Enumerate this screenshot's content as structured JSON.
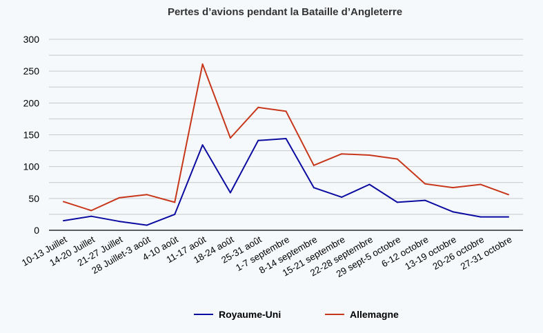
{
  "chart_data": {
    "type": "line",
    "title": "Pertes d’avions pendant la Bataille d’Angleterre",
    "xlabel": "",
    "ylabel": "",
    "ylim": [
      0,
      300
    ],
    "yticks": [
      0,
      50,
      100,
      150,
      200,
      250,
      300
    ],
    "grid": true,
    "legend_position": "bottom",
    "categories": [
      "10-13 Juillet",
      "14-20 Juillet",
      "21-27 Juillet",
      "28 Juillet-3 août",
      "4-10 août",
      "11-17 août",
      "18-24 août",
      "25-31 août",
      "1-7 septembre",
      "8-14 septembre",
      "15-21 septembre",
      "22-28 septembre",
      "29 sept-5 octobre",
      "6-12 octobre",
      "13-19 octobre",
      "20-26 octobre",
      "27-31 octobre"
    ],
    "series": [
      {
        "name": "Royaume-Uni",
        "color": "#0a0aa0",
        "values": [
          15,
          22,
          14,
          8,
          25,
          134,
          59,
          141,
          144,
          67,
          52,
          72,
          44,
          47,
          29,
          21,
          21
        ]
      },
      {
        "name": "Allemagne",
        "color": "#c8361a",
        "values": [
          45,
          31,
          51,
          56,
          44,
          261,
          145,
          193,
          187,
          102,
          120,
          118,
          112,
          73,
          67,
          72,
          56
        ]
      }
    ]
  }
}
